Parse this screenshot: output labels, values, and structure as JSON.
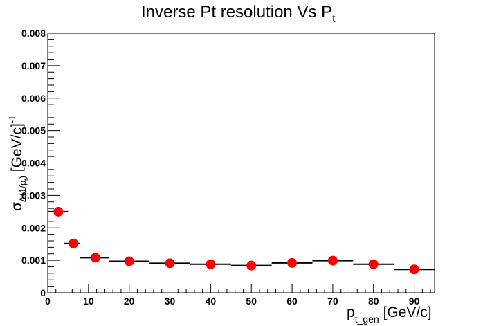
{
  "chart_data": {
    "type": "scatter",
    "title": {
      "main": "Inverse Pt resolution Vs P",
      "sub": "t"
    },
    "xlabel": {
      "main": "p",
      "sub": "t_gen",
      "tail": " [GeV/c]"
    },
    "ylabel": {
      "main": "σ",
      "sub": "Δ(1/p",
      "subsub": "t",
      "subclose": ")",
      "tail": " [GeV/c]",
      "sup": "-1"
    },
    "xlim": [
      0,
      95
    ],
    "ylim": [
      0,
      0.008
    ],
    "x_ticks": [
      0,
      10,
      20,
      30,
      40,
      50,
      60,
      70,
      80,
      90
    ],
    "y_ticks": [
      "0",
      "0.001",
      "0.002",
      "0.003",
      "0.004",
      "0.005",
      "0.006",
      "0.007",
      "0.008"
    ],
    "series": [
      {
        "marker_color": "#ff0000",
        "points": [
          {
            "x": 2.6,
            "y": 0.0025,
            "xlo": 0,
            "xhi": 5
          },
          {
            "x": 6.3,
            "y": 0.00152,
            "xlo": 4,
            "xhi": 8
          },
          {
            "x": 11.7,
            "y": 0.00108,
            "xlo": 8,
            "xhi": 15
          },
          {
            "x": 20,
            "y": 0.00097,
            "xlo": 15,
            "xhi": 25
          },
          {
            "x": 30,
            "y": 0.00091,
            "xlo": 25,
            "xhi": 35
          },
          {
            "x": 40,
            "y": 0.00088,
            "xlo": 35,
            "xhi": 45
          },
          {
            "x": 50,
            "y": 0.00084,
            "xlo": 45,
            "xhi": 55
          },
          {
            "x": 60,
            "y": 0.00092,
            "xlo": 55,
            "xhi": 65
          },
          {
            "x": 70,
            "y": 0.00099,
            "xlo": 65,
            "xhi": 75
          },
          {
            "x": 80,
            "y": 0.00088,
            "xlo": 75,
            "xhi": 85
          },
          {
            "x": 90,
            "y": 0.00072,
            "xlo": 85,
            "xhi": 95
          }
        ]
      }
    ]
  }
}
